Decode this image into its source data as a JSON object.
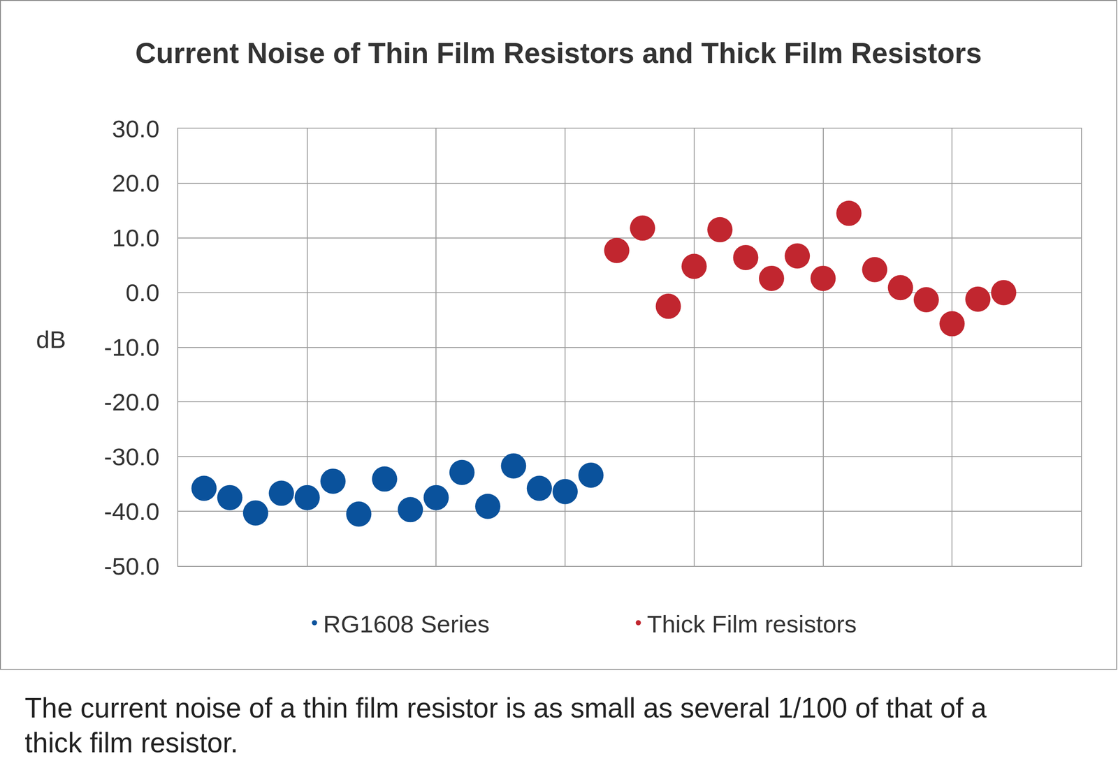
{
  "chart_data": {
    "type": "scatter",
    "title": "Current Noise of Thin Film Resistors and Thick Film Resistors",
    "y_label": "dB",
    "caption": "The current noise of a thin film resistor is as small as several 1/100 of that of a thick film resistor.",
    "xlim": [
      0,
      35
    ],
    "xticks": [
      0,
      5,
      10,
      15,
      20,
      25,
      30,
      35
    ],
    "ylim": [
      -50,
      30
    ],
    "yticks": [
      {
        "value": -50,
        "label": "-50.0"
      },
      {
        "value": -40,
        "label": "-40.0"
      },
      {
        "value": -30,
        "label": "-30.0"
      },
      {
        "value": -20,
        "label": "-20.0"
      },
      {
        "value": -10,
        "label": "-10.0"
      },
      {
        "value": 0,
        "label": "0.0"
      },
      {
        "value": 10,
        "label": "10.0"
      },
      {
        "value": 20,
        "label": "20.0"
      },
      {
        "value": 30,
        "label": "30.0"
      }
    ],
    "grid": true,
    "tick_labels": "y",
    "legend": "bottom",
    "marker": "circle",
    "series": [
      {
        "name": "RG1608 Series",
        "color": "#0a529c",
        "x": [
          1,
          2,
          3,
          4,
          5,
          6,
          7,
          8,
          9,
          10,
          11,
          12,
          13,
          14,
          15,
          16
        ],
        "values": [
          -35.8,
          -37.5,
          -40.3,
          -36.7,
          -37.5,
          -34.5,
          -40.5,
          -34.1,
          -39.7,
          -37.5,
          -32.9,
          -39.1,
          -31.7,
          -35.8,
          -36.4,
          -33.4
        ]
      },
      {
        "name": "Thick Film resistors",
        "color": "#c1262f",
        "x": [
          17,
          18,
          19,
          20,
          21,
          22,
          23,
          24,
          25,
          26,
          27,
          28,
          29,
          30,
          31,
          32
        ],
        "values": [
          7.7,
          11.8,
          -2.5,
          4.8,
          11.5,
          6.4,
          2.6,
          6.7,
          2.6,
          14.5,
          4.2,
          0.9,
          -1.3,
          -5.7,
          -1.2,
          0.0
        ]
      }
    ]
  }
}
